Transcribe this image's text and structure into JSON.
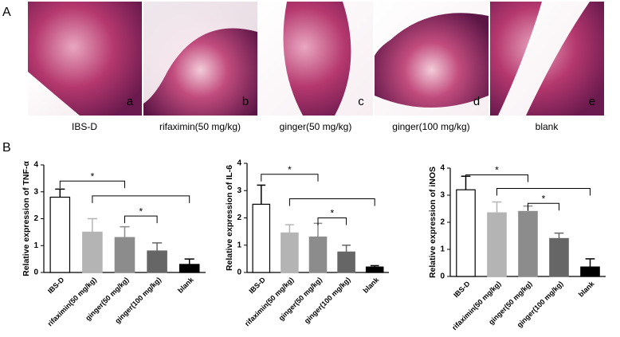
{
  "panel_labels": [
    "A",
    "B"
  ],
  "images": [
    {
      "label": "a",
      "caption": "IBS-D"
    },
    {
      "label": "b",
      "caption": "rifaximin(50 mg/kg)"
    },
    {
      "label": "c",
      "caption": "ginger(50 mg/kg)"
    },
    {
      "label": "d",
      "caption": "ginger(100 mg/kg)"
    },
    {
      "label": "e",
      "caption": "blank"
    }
  ],
  "chart_data": [
    {
      "type": "bar",
      "ylabel": "Relative expression of TNF-α",
      "categories": [
        "IBS-D",
        "rifaximin(50 mg/kg)",
        "ginger(50 mg/kg)",
        "ginger(100 mg/kg)",
        "blank"
      ],
      "values": [
        2.8,
        1.5,
        1.3,
        0.8,
        0.3
      ],
      "errors": [
        0.3,
        0.5,
        0.4,
        0.3,
        0.2
      ],
      "colors": [
        "#ffffff",
        "#b4b4b4",
        "#8c8c8c",
        "#666666",
        "#000000"
      ],
      "ylim": [
        0,
        4
      ],
      "yticks": [
        0,
        1,
        2,
        3,
        4
      ],
      "annotations": [
        "*",
        "*"
      ]
    },
    {
      "type": "bar",
      "ylabel": "Relative expression of IL-6",
      "categories": [
        "IBS-D",
        "rifaximin(50 mg/kg)",
        "ginger(50 mg/kg)",
        "ginger(100 mg/kg)",
        "blank"
      ],
      "values": [
        2.5,
        1.45,
        1.3,
        0.75,
        0.2
      ],
      "errors": [
        0.7,
        0.3,
        0.5,
        0.25,
        0.05
      ],
      "colors": [
        "#ffffff",
        "#b4b4b4",
        "#8c8c8c",
        "#666666",
        "#000000"
      ],
      "ylim": [
        0,
        4
      ],
      "yticks": [
        0,
        1,
        2,
        3,
        4
      ],
      "annotations": [
        "*",
        "*"
      ]
    },
    {
      "type": "bar",
      "ylabel": "Relative expression of iNOS",
      "categories": [
        "IBS-D",
        "rifaximin(50 mg/kg)",
        "ginger(50 mg/kg)",
        "ginger(100 mg/kg)",
        "blank"
      ],
      "values": [
        3.2,
        2.35,
        2.4,
        1.4,
        0.35
      ],
      "errors": [
        0.5,
        0.4,
        0.2,
        0.2,
        0.3
      ],
      "colors": [
        "#ffffff",
        "#b4b4b4",
        "#8c8c8c",
        "#666666",
        "#000000"
      ],
      "ylim": [
        0,
        4
      ],
      "yticks": [
        0,
        1,
        2,
        3,
        4
      ],
      "annotations": [
        "*",
        "*"
      ]
    }
  ]
}
